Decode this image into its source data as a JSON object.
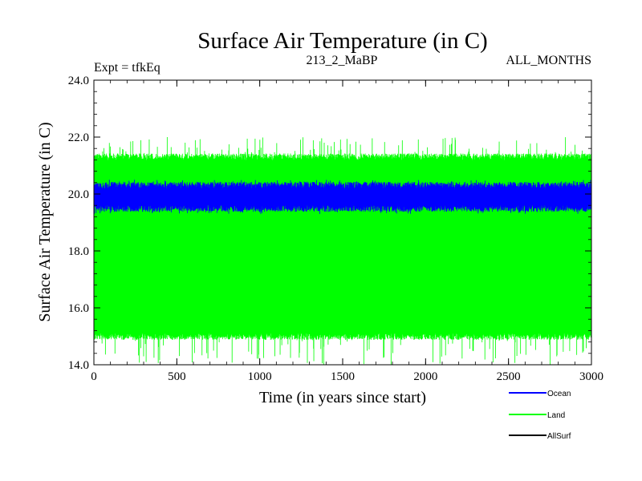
{
  "chart_data": {
    "type": "line",
    "title": "Surface Air Temperature (in C)",
    "subtitle_left": "Expt = tfkEq",
    "subtitle_center": "213_2_MaBP",
    "subtitle_right": "ALL_MONTHS",
    "xlabel": "Time (in years since start)",
    "ylabel": "Surface Air Temperature (in C)",
    "xlim": [
      0,
      3000
    ],
    "ylim": [
      14.0,
      24.0
    ],
    "x_ticks": [
      0,
      500,
      1000,
      1500,
      2000,
      2500,
      3000
    ],
    "x_tick_labels": [
      "0",
      "500",
      "1000",
      "1500",
      "2000",
      "2500",
      "3000"
    ],
    "y_ticks": [
      14.0,
      16.0,
      18.0,
      20.0,
      22.0,
      24.0
    ],
    "y_tick_labels": [
      "14.0",
      "16.0",
      "18.0",
      "20.0",
      "22.0",
      "24.0"
    ],
    "grid": false,
    "legend_position": "bottom-right",
    "series": [
      {
        "name": "Ocean",
        "color": "#0000ff",
        "envelope_x": [
          0,
          500,
          1000,
          1500,
          2000,
          2500,
          3000
        ],
        "envelope_min": [
          19.5,
          19.5,
          19.5,
          19.5,
          19.5,
          19.5,
          19.5
        ],
        "envelope_max": [
          20.3,
          20.3,
          20.3,
          20.3,
          20.3,
          20.3,
          20.3
        ],
        "extreme_min": 19.3,
        "extreme_max": 20.5
      },
      {
        "name": "Land",
        "color": "#00ff00",
        "envelope_x": [
          0,
          500,
          1000,
          1500,
          2000,
          2500,
          3000
        ],
        "envelope_min": [
          15.0,
          15.0,
          15.0,
          15.0,
          15.0,
          15.0,
          15.0
        ],
        "envelope_max": [
          21.3,
          21.3,
          21.3,
          21.3,
          21.3,
          21.3,
          21.3
        ],
        "extreme_min": 14.0,
        "extreme_max": 22.0
      },
      {
        "name": "AllSurf",
        "color": "#000000",
        "envelope_x": [],
        "envelope_min": [],
        "envelope_max": []
      }
    ]
  }
}
